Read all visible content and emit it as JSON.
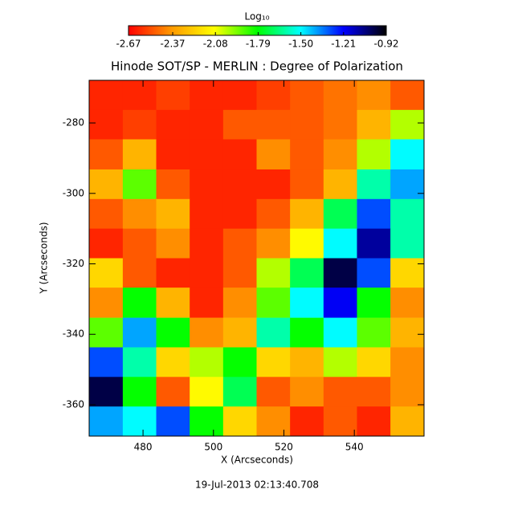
{
  "chart_data": {
    "type": "heatmap",
    "title": "Hinode SOT/SP - MERLIN : Degree of Polarization",
    "x_label": "X (Arcseconds)",
    "y_label": "Y (Arcseconds)",
    "footer": "19-Jul-2013 02:13:40.708",
    "colorbar_title": "Log₁₀",
    "colormap": [
      "#ff0000",
      "#ff9900",
      "#ffff00",
      "#00ff00",
      "#00ffff",
      "#0000ff",
      "#000000"
    ],
    "zlim": [
      -2.67,
      -0.92
    ],
    "zticks": [
      -2.67,
      -2.37,
      -2.08,
      -1.79,
      {
        "value": -1.5,
        "label": "-1.50"
      },
      -1.21,
      -0.92
    ],
    "xlim": [
      464.7,
      559.8
    ],
    "ylim": [
      -368.9,
      -267.9
    ],
    "xticks": [
      480,
      500,
      520,
      540
    ],
    "yticks": [
      -280,
      -300,
      -320,
      -340,
      -360
    ],
    "x": [
      469.5,
      479,
      488.5,
      498,
      507.5,
      517,
      526.5,
      536,
      545.5,
      555
    ],
    "y": [
      -272.1,
      -280.5,
      -288.9,
      -297.4,
      -305.8,
      -314.2,
      -322.6,
      -331.0,
      -339.5,
      -347.9,
      -356.3,
      -364.7
    ],
    "z": [
      [
        -2.6,
        -2.6,
        -2.55,
        -2.6,
        -2.6,
        -2.55,
        -2.5,
        -2.45,
        -2.4,
        -2.5
      ],
      [
        -2.6,
        -2.55,
        -2.6,
        -2.6,
        -2.5,
        -2.5,
        -2.5,
        -2.45,
        -2.3,
        -2.0
      ],
      [
        -2.5,
        -2.3,
        -2.6,
        -2.6,
        -2.6,
        -2.4,
        -2.5,
        -2.4,
        -2.0,
        -1.5
      ],
      [
        -2.3,
        -1.9,
        -2.5,
        -2.6,
        -2.6,
        -2.6,
        -2.5,
        -2.3,
        -1.6,
        -1.4
      ],
      [
        -2.5,
        -2.4,
        -2.3,
        -2.6,
        -2.6,
        -2.5,
        -2.3,
        -1.7,
        -1.3,
        -1.6
      ],
      [
        -2.6,
        -2.5,
        -2.4,
        -2.6,
        -2.5,
        -2.4,
        -2.1,
        -1.5,
        -1.1,
        -1.6
      ],
      [
        -2.2,
        -2.5,
        -2.6,
        -2.6,
        -2.5,
        -2.0,
        -1.7,
        -1.0,
        -1.3,
        -2.2
      ],
      [
        -2.4,
        -1.8,
        -2.3,
        -2.6,
        -2.4,
        -1.9,
        -1.5,
        -1.2,
        -1.8,
        -2.4
      ],
      [
        -1.9,
        -1.4,
        -1.8,
        -2.4,
        -2.3,
        -1.6,
        -1.8,
        -1.5,
        -1.9,
        -2.3
      ],
      [
        -1.3,
        -1.6,
        -2.2,
        -2.0,
        -1.8,
        -2.2,
        -2.3,
        -2.0,
        -2.2,
        -2.4
      ],
      [
        -1.0,
        -1.8,
        -2.5,
        -2.1,
        -1.7,
        -2.5,
        -2.4,
        -2.5,
        -2.5,
        -2.4
      ],
      [
        -1.4,
        -1.5,
        -1.3,
        -1.8,
        -2.2,
        -2.4,
        -2.6,
        -2.5,
        -2.6,
        -2.3
      ]
    ]
  }
}
